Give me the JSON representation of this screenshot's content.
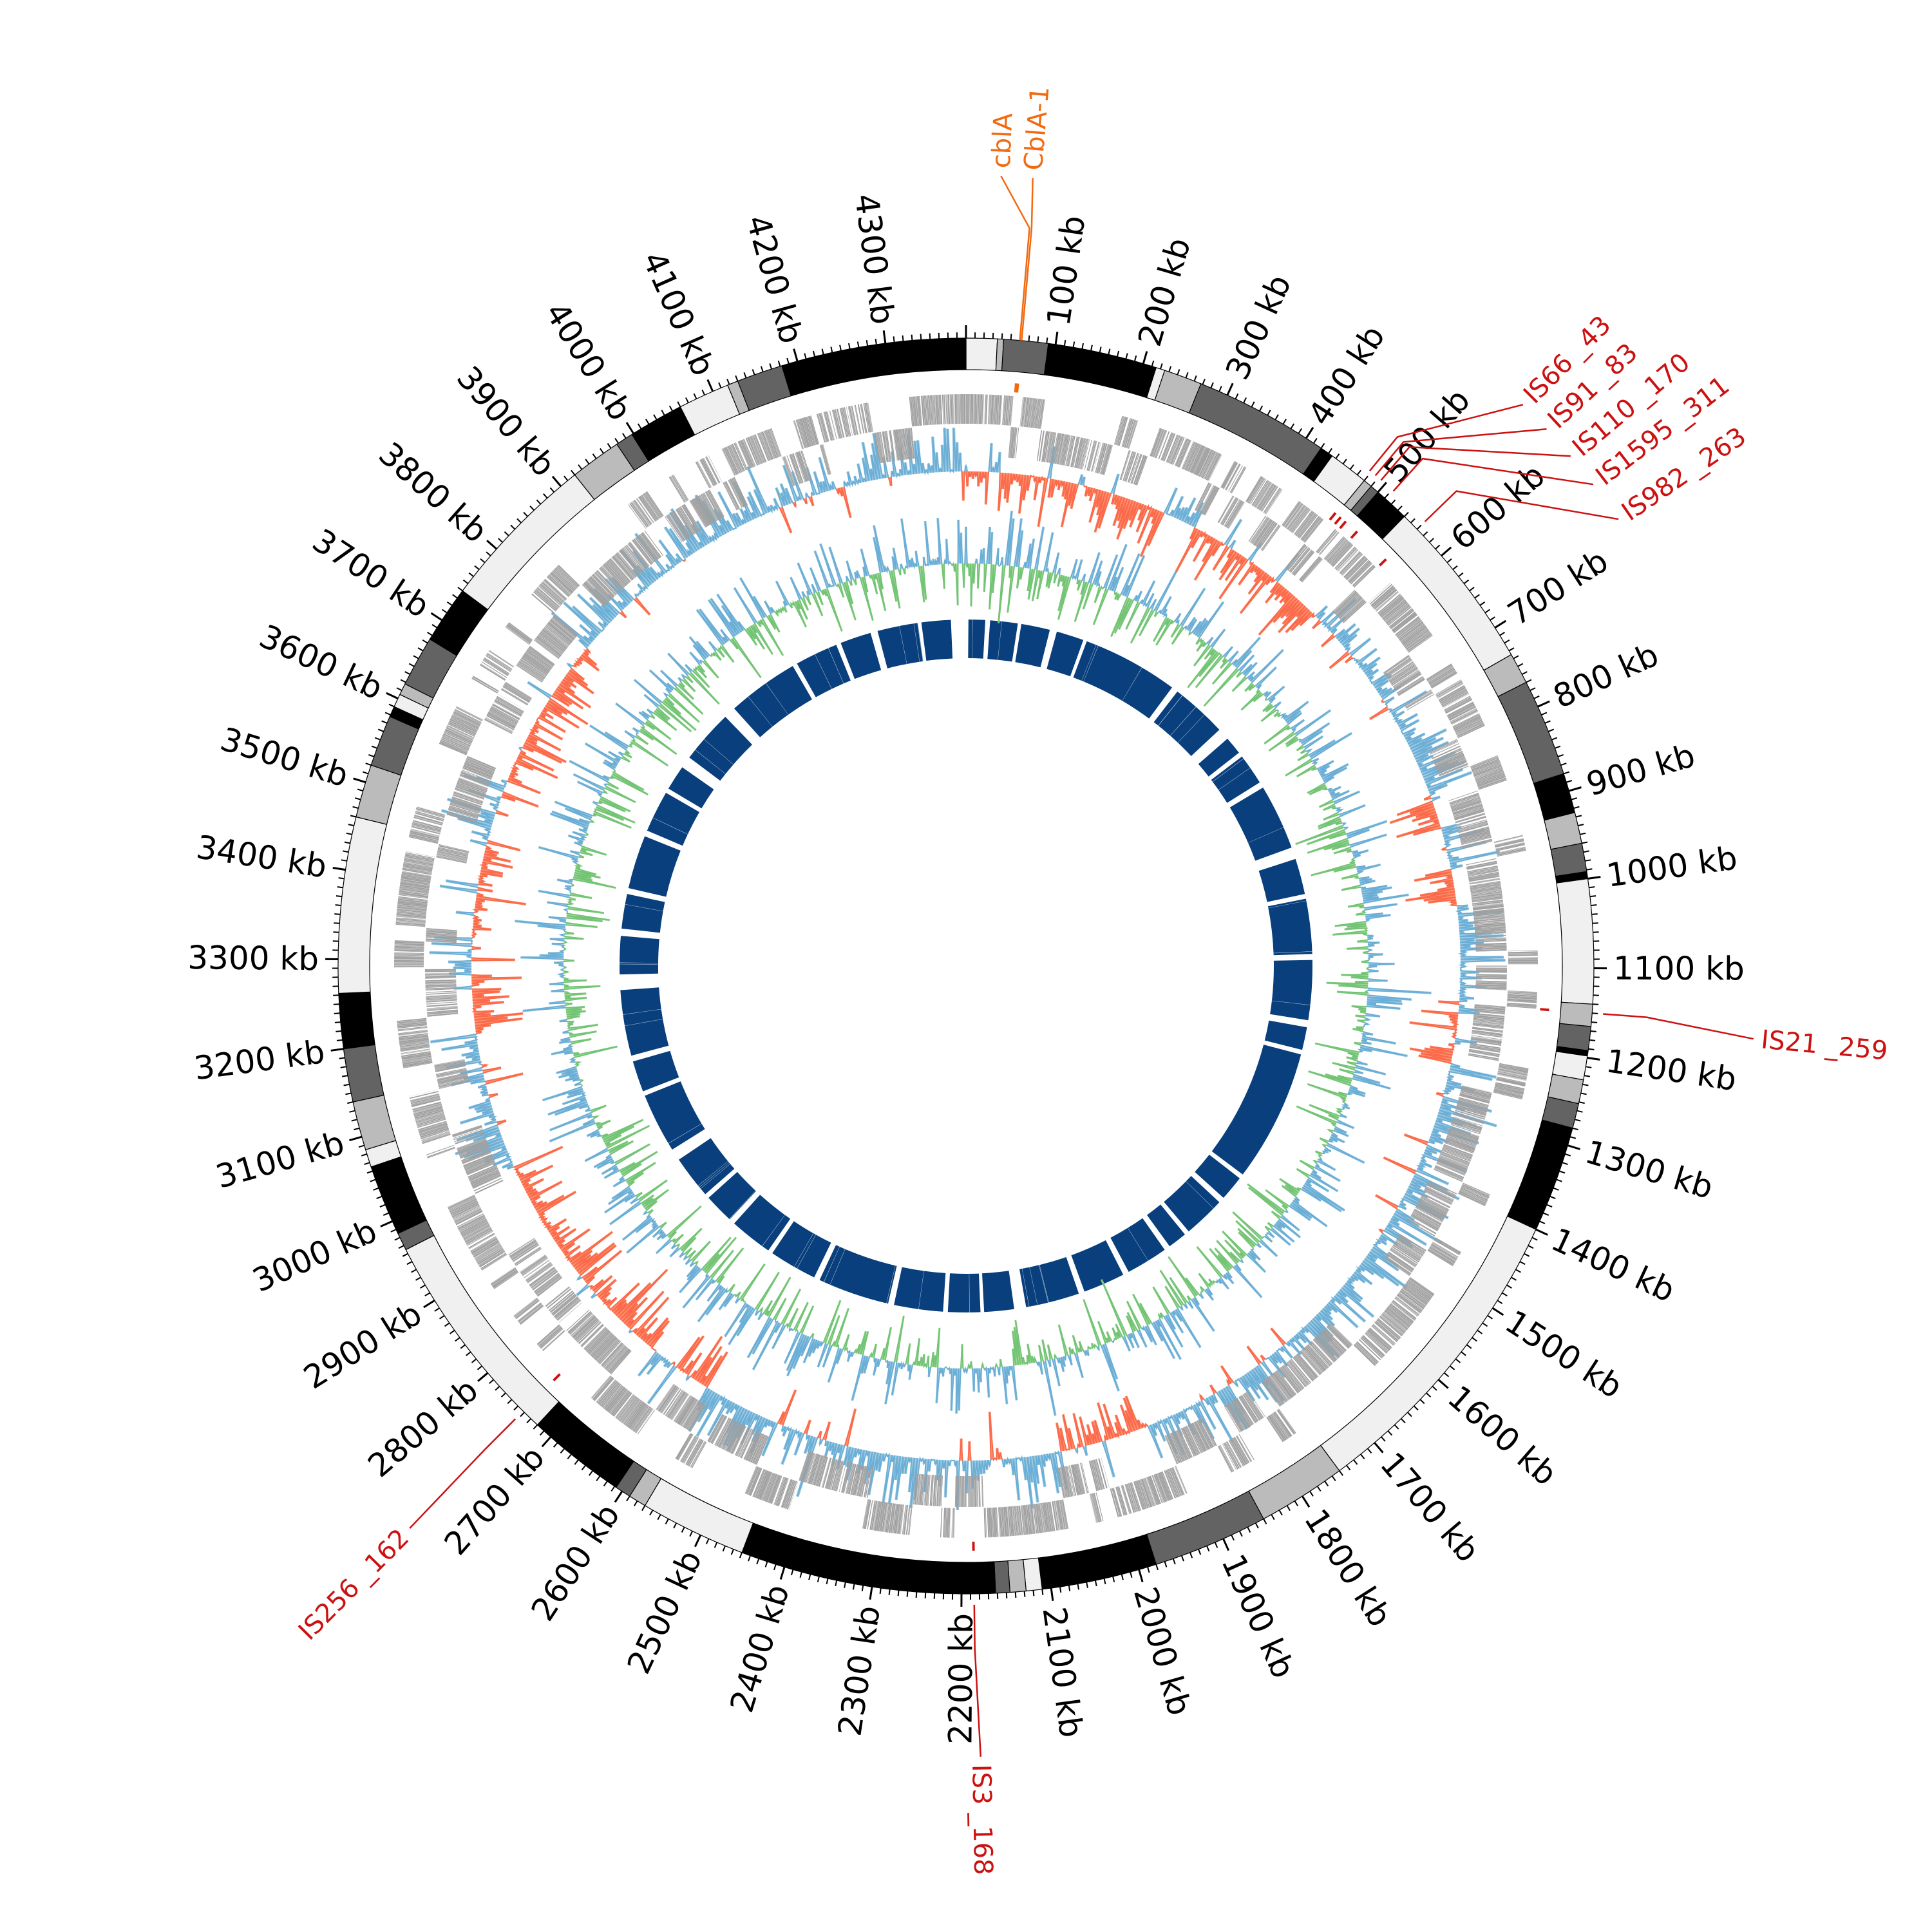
{
  "chart_data": {
    "type": "circular-genome",
    "title": "",
    "genome_length_kb": 4390,
    "tick_unit": "kb",
    "major_tick_step_kb": 100,
    "minor_tick_step_kb": 10,
    "tick_labels": [
      "100 kb",
      "200 kb",
      "300 kb",
      "400 kb",
      "500 kb",
      "600 kb",
      "700 kb",
      "800 kb",
      "900 kb",
      "1000 kb",
      "1100 kb",
      "1200 kb",
      "1300 kb",
      "1400 kb",
      "1500 kb",
      "1600 kb",
      "1700 kb",
      "1800 kb",
      "1900 kb",
      "2000 kb",
      "2100 kb",
      "2200 kb",
      "2300 kb",
      "2400 kb",
      "2500 kb",
      "2600 kb",
      "2700 kb",
      "2800 kb",
      "2900 kb",
      "3000 kb",
      "3100 kb",
      "3200 kb",
      "3300 kb",
      "3400 kb",
      "3500 kb",
      "3600 kb",
      "3700 kb",
      "3800 kb",
      "3900 kb",
      "4000 kb",
      "4100 kb",
      "4200 kb",
      "4300 kb"
    ],
    "band_colors": {
      "light": "#f0f0f0",
      "mid": "#bbbbbb",
      "dark": "#636363",
      "black": "#000000"
    },
    "ideogram_bands": [
      [
        0,
        35,
        "light"
      ],
      [
        35,
        42,
        "mid"
      ],
      [
        42,
        92,
        "dark"
      ],
      [
        92,
        215,
        "black"
      ],
      [
        215,
        225,
        "light"
      ],
      [
        225,
        268,
        "mid"
      ],
      [
        268,
        420,
        "dark"
      ],
      [
        420,
        435,
        "black"
      ],
      [
        435,
        480,
        "light"
      ],
      [
        480,
        490,
        "mid"
      ],
      [
        490,
        500,
        "dark"
      ],
      [
        500,
        540,
        "black"
      ],
      [
        540,
        735,
        "light"
      ],
      [
        735,
        770,
        "mid"
      ],
      [
        770,
        880,
        "dark"
      ],
      [
        880,
        925,
        "black"
      ],
      [
        925,
        960,
        "mid"
      ],
      [
        960,
        992,
        "dark"
      ],
      [
        992,
        1000,
        "black"
      ],
      [
        1000,
        1140,
        "light"
      ],
      [
        1140,
        1165,
        "mid"
      ],
      [
        1165,
        1192,
        "dark"
      ],
      [
        1192,
        1198,
        "black"
      ],
      [
        1198,
        1225,
        "light"
      ],
      [
        1225,
        1252,
        "mid"
      ],
      [
        1252,
        1280,
        "dark"
      ],
      [
        1280,
        1400,
        "black"
      ],
      [
        1400,
        1750,
        "light"
      ],
      [
        1750,
        1850,
        "mid"
      ],
      [
        1850,
        1980,
        "dark"
      ],
      [
        1980,
        2110,
        "black"
      ],
      [
        2110,
        2128,
        "light"
      ],
      [
        2128,
        2146,
        "mid"
      ],
      [
        2146,
        2162,
        "dark"
      ],
      [
        2162,
        2450,
        "black"
      ],
      [
        2450,
        2570,
        "light"
      ],
      [
        2570,
        2590,
        "mid"
      ],
      [
        2590,
        2608,
        "dark"
      ],
      [
        2608,
        2720,
        "black"
      ],
      [
        2720,
        2965,
        "light"
      ],
      [
        2965,
        2985,
        "dark"
      ],
      [
        2985,
        3065,
        "black"
      ],
      [
        3065,
        3085,
        "light"
      ],
      [
        3085,
        3140,
        "mid"
      ],
      [
        3140,
        3200,
        "dark"
      ],
      [
        3200,
        3262,
        "black"
      ],
      [
        3262,
        3460,
        "light"
      ],
      [
        3460,
        3520,
        "mid"
      ],
      [
        3520,
        3578,
        "dark"
      ],
      [
        3578,
        3590,
        "black"
      ],
      [
        3590,
        3605,
        "light"
      ],
      [
        3605,
        3618,
        "mid"
      ],
      [
        3618,
        3675,
        "dark"
      ],
      [
        3675,
        3740,
        "black"
      ],
      [
        3740,
        3920,
        "light"
      ],
      [
        3920,
        3978,
        "mid"
      ],
      [
        3978,
        3998,
        "dark"
      ],
      [
        3998,
        4060,
        "black"
      ],
      [
        4060,
        4118,
        "light"
      ],
      [
        4118,
        4130,
        "mid"
      ],
      [
        4130,
        4182,
        "dark"
      ],
      [
        4182,
        4390,
        "black"
      ]
    ],
    "features": [
      {
        "label": "cblA",
        "position_kb": 60,
        "color": "#f26a10",
        "label_angle_offset_kb": -22
      },
      {
        "label": "CblA-1",
        "position_kb": 62,
        "color": "#f26a10",
        "label_angle_offset_kb": -10
      },
      {
        "label": "IS66 _43",
        "position_kb": 478,
        "color": "#cc1111",
        "label_angle_offset_kb": 68
      },
      {
        "label": "IS91 _83",
        "position_kb": 486,
        "color": "#cc1111",
        "label_angle_offset_kb": 90
      },
      {
        "label": "IS110 _170",
        "position_kb": 494,
        "color": "#cc1111",
        "label_angle_offset_kb": 114
      },
      {
        "label": "IS1595 _311",
        "position_kb": 512,
        "color": "#cc1111",
        "label_angle_offset_kb": 128
      },
      {
        "label": "IS982 _263",
        "position_kb": 560,
        "color": "#cc1111",
        "label_angle_offset_kb": 118
      },
      {
        "label": "IS21 _259",
        "position_kb": 1150,
        "color": "#cc1111",
        "label_angle_offset_kb": 12
      },
      {
        "label": "IS3 _168",
        "position_kb": 2186,
        "color": "#cc1111",
        "label_angle_offset_kb": -4
      },
      {
        "label": "IS256 _162",
        "position_kb": 2742,
        "color": "#cc1111",
        "label_angle_offset_kb": -2
      }
    ],
    "tracks": {
      "genes": {
        "color": "#a0a0a0"
      },
      "gc_skew": {
        "positive_line": "#6baed6",
        "positive_fill": "#9ecae1",
        "negative_line": "#fb6a4a",
        "negative_fill": "#fc9272",
        "sign_regions_kb": [
          [
            0,
            30,
            -1
          ],
          [
            30,
            45,
            1
          ],
          [
            45,
            285,
            -1
          ],
          [
            285,
            335,
            1
          ],
          [
            335,
            545,
            -1
          ],
          [
            545,
            860,
            1
          ],
          [
            860,
            895,
            -1
          ],
          [
            895,
            960,
            1
          ],
          [
            960,
            1010,
            -1
          ],
          [
            1010,
            1160,
            1
          ],
          [
            1160,
            1235,
            -1
          ],
          [
            1235,
            1930,
            1
          ],
          [
            1930,
            2060,
            -1
          ],
          [
            2060,
            2140,
            1
          ],
          [
            2140,
            2160,
            -1
          ],
          [
            2160,
            2580,
            1
          ],
          [
            2580,
            2630,
            -1
          ],
          [
            2630,
            2670,
            1
          ],
          [
            2670,
            3000,
            -1
          ],
          [
            3000,
            3190,
            1
          ],
          [
            3190,
            3280,
            -1
          ],
          [
            3280,
            3330,
            1
          ],
          [
            3330,
            3470,
            -1
          ],
          [
            3470,
            3560,
            1
          ],
          [
            3560,
            3780,
            -1
          ],
          [
            3780,
            4200,
            1
          ],
          [
            4200,
            4215,
            -1
          ],
          [
            4215,
            4390,
            1
          ]
        ]
      },
      "gc_content": {
        "positive_line": "#6baed6",
        "positive_fill": "#9ecae1",
        "negative_line": "#74c476",
        "negative_fill": "#a1d99b"
      },
      "inner_ring": {
        "color": "#083f7c",
        "gaps_deg": [
          [
            357.5,
            0.4
          ],
          [
            3.2,
            4.0
          ],
          [
            8.6,
            9.2
          ],
          [
            14.0,
            15.2
          ],
          [
            19.8,
            20.4
          ],
          [
            36.5,
            37.6
          ],
          [
            47.0,
            49.0
          ],
          [
            52.0,
            52.8
          ],
          [
            58.0,
            59.0
          ],
          [
            70.0,
            72.0
          ],
          [
            78.0,
            78.8
          ],
          [
            88.0,
            89.0
          ],
          [
            99.0,
            100.2
          ],
          [
            104.0,
            104.8
          ],
          [
            127.0,
            127.8
          ],
          [
            132.0,
            133.0
          ],
          [
            140.0,
            140.8
          ],
          [
            144.0,
            145.0
          ],
          [
            152.0,
            153.0
          ],
          [
            160.0,
            161.0
          ],
          [
            170.0,
            172.0
          ],
          [
            177.0,
            177.6
          ],
          [
            183.0,
            183.8
          ],
          [
            192.0,
            193.0
          ],
          [
            205.0,
            206.0
          ],
          [
            214.0,
            214.8
          ],
          [
            222.0,
            223.0
          ],
          [
            228.0,
            228.8
          ],
          [
            236.0,
            238.0
          ],
          [
            248.0,
            248.8
          ],
          [
            254.0,
            255.0
          ],
          [
            266.0,
            268.6
          ],
          [
            275.0,
            276.2
          ],
          [
            282.0,
            283.0
          ],
          [
            292.0,
            293.0
          ],
          [
            300.0,
            300.8
          ],
          [
            305.0,
            307.0
          ],
          [
            316.0,
            318.0
          ],
          [
            330.0,
            330.8
          ],
          [
            338.0,
            338.8
          ],
          [
            344.0,
            345.2
          ],
          [
            352.0,
            352.6
          ]
        ]
      }
    }
  }
}
